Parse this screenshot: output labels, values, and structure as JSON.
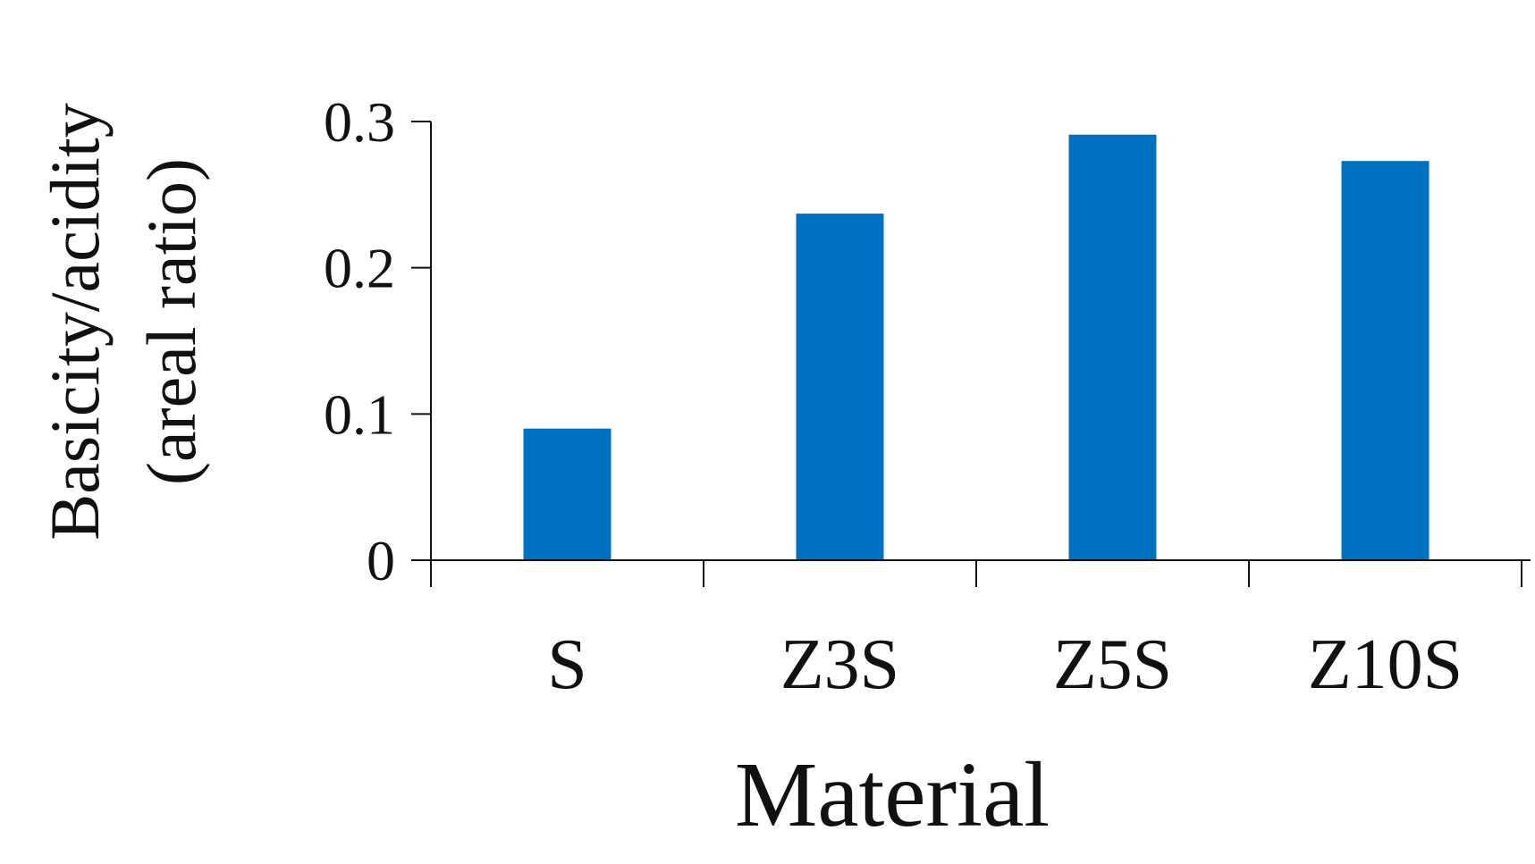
{
  "chart_data": {
    "type": "bar",
    "xlabel": "Material",
    "ylabel_lines": [
      "Basicity/acidity",
      "(areal ratio)"
    ],
    "categories": [
      "S",
      "Z3S",
      "Z5S",
      "Z10S"
    ],
    "values": [
      0.09,
      0.237,
      0.291,
      0.273
    ],
    "ylim": [
      0,
      0.3
    ],
    "yticks": [
      0,
      0.1,
      0.2,
      0.3
    ],
    "ytick_labels": [
      "0",
      "0.1",
      "0.2",
      "0.3"
    ],
    "grid": false,
    "legend": "none",
    "bar_color": "#0070C0",
    "axis_color": "#111111"
  }
}
